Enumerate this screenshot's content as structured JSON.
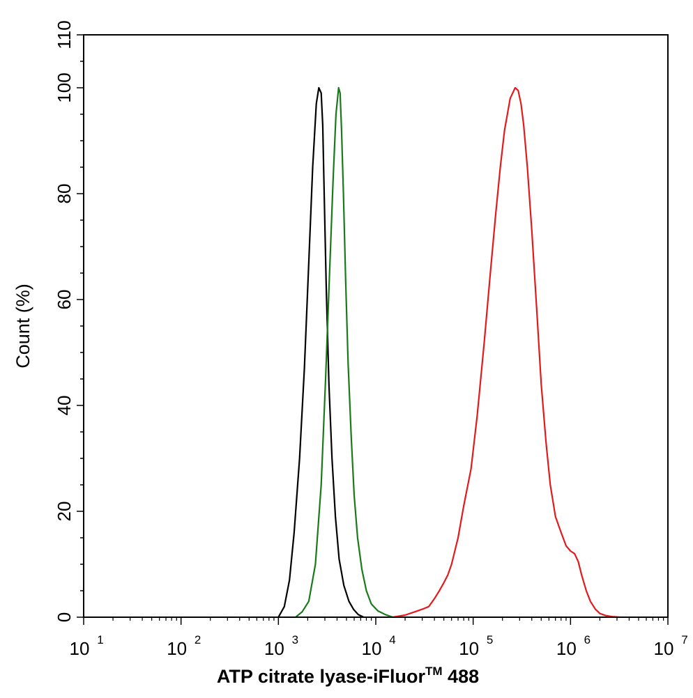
{
  "chart_data": {
    "type": "line",
    "title": "",
    "xlabel": "ATP citrate lyase-iFluor",
    "xlabel_superscript": "TM",
    "xlabel_suffix": " 488",
    "ylabel": "Count  (%)",
    "x_scale": "log",
    "xlim": [
      10,
      10000000
    ],
    "ylim": [
      0,
      110
    ],
    "x_ticks": [
      {
        "base": "10",
        "exp": "1",
        "value": 10
      },
      {
        "base": "10",
        "exp": "2",
        "value": 100
      },
      {
        "base": "10",
        "exp": "3",
        "value": 1000
      },
      {
        "base": "10",
        "exp": "4",
        "value": 10000
      },
      {
        "base": "10",
        "exp": "5",
        "value": 100000
      },
      {
        "base": "10",
        "exp": "6",
        "value": 1000000
      },
      {
        "base": "10",
        "exp": "7",
        "value": 10000000
      }
    ],
    "y_ticks": [
      "0",
      "20",
      "40",
      "60",
      "80",
      "100",
      "110"
    ],
    "y_tick_values": [
      0,
      20,
      40,
      60,
      80,
      100,
      110
    ],
    "grid": false,
    "legend": "none",
    "series": [
      {
        "color": "#000000",
        "x": [
          1000,
          1150,
          1300,
          1450,
          1650,
          1850,
          2050,
          2250,
          2450,
          2600,
          2750,
          2850,
          2950,
          3100,
          3300,
          3550,
          3850,
          4200,
          4700,
          5300,
          5900,
          6600,
          7500
        ],
        "y": [
          0,
          2,
          7,
          16,
          30,
          47,
          67,
          85,
          97,
          100,
          99,
          93,
          80,
          62,
          44,
          30,
          19,
          11,
          6,
          3,
          1.5,
          0.5,
          0
        ]
      },
      {
        "color": "#1a7a1a",
        "x": [
          1500,
          1750,
          2050,
          2400,
          2750,
          3050,
          3350,
          3650,
          3900,
          4150,
          4300,
          4450,
          4650,
          4900,
          5200,
          5600,
          6000,
          6500,
          7200,
          8000,
          9000,
          10500,
          12500,
          15000
        ],
        "y": [
          0,
          1,
          3,
          10,
          25,
          45,
          65,
          83,
          95,
          100,
          99,
          92,
          80,
          64,
          48,
          34,
          23,
          15,
          9,
          5,
          2.5,
          1.2,
          0.5,
          0
        ]
      },
      {
        "color": "#e31a1c",
        "x": [
          15000,
          20000,
          25000,
          30000,
          35000,
          40000,
          45000,
          50000,
          55000,
          60000,
          70000,
          80000,
          95000,
          110000,
          130000,
          150000,
          170000,
          190000,
          210000,
          240000,
          270000,
          290000,
          310000,
          330000,
          360000,
          400000,
          450000,
          500000,
          560000,
          620000,
          700000,
          800000,
          900000,
          1000000,
          1100000,
          1200000,
          1300000,
          1450000,
          1600000,
          1800000,
          2000000,
          2300000,
          2700000,
          3200000
        ],
        "y": [
          0,
          0.4,
          1,
          1.5,
          2,
          3.5,
          5,
          6.5,
          8,
          10,
          15,
          21,
          28,
          38,
          52,
          65,
          76,
          85,
          92,
          98,
          100,
          99.5,
          97,
          93,
          85,
          73,
          58,
          44,
          33,
          25,
          19,
          16,
          13.5,
          12.5,
          12,
          10.5,
          8,
          5,
          3,
          1.5,
          0.7,
          0.3,
          0.1,
          0
        ]
      }
    ]
  }
}
